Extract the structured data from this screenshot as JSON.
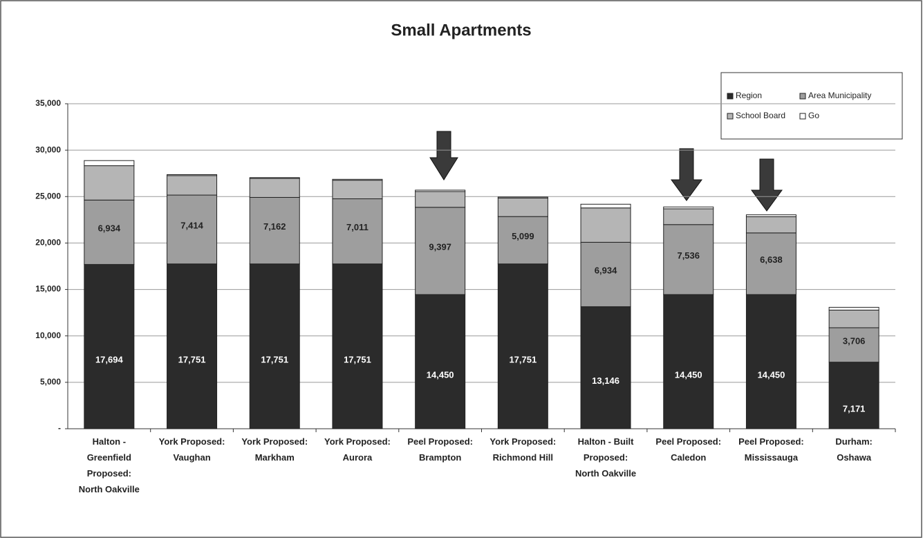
{
  "chart_data": {
    "type": "stacked_bar",
    "title": "Small Apartments",
    "categories": [
      "Halton -\nGreenfield\nProposed:\nNorth Oakville",
      "York Proposed:\nVaughan",
      "York Proposed:\nMarkham",
      "York Proposed:\nAurora",
      "Peel Proposed:\nBrampton",
      "York Proposed:\nRichmond Hill",
      "Halton - Built\nProposed:\nNorth Oakville",
      "Peel Proposed:\nCaledon",
      "Peel Proposed:\nMississauga",
      "Durham:\nOshawa"
    ],
    "series": [
      {
        "name": "Region",
        "color": "#2b2b2b",
        "values": [
          17694,
          17751,
          17751,
          17751,
          14450,
          17751,
          13146,
          14450,
          14450,
          7171
        ],
        "value_labels": [
          "17,694",
          "17,751",
          "17,751",
          "17,751",
          "14,450",
          "17,751",
          "13,146",
          "14,450",
          "14,450",
          "7,171"
        ]
      },
      {
        "name": "Area Municipality",
        "color": "#9e9e9e",
        "values": [
          6934,
          7414,
          7162,
          7011,
          9397,
          5099,
          6934,
          7536,
          6638,
          3706
        ],
        "value_labels": [
          "6,934",
          "7,414",
          "7,162",
          "7,011",
          "9,397",
          "5,099",
          "6,934",
          "7,536",
          "6,638",
          "3,706"
        ]
      },
      {
        "name": "School Board",
        "color": "#b5b5b5",
        "values": [
          3700,
          2100,
          2050,
          2000,
          1700,
          2000,
          3700,
          1700,
          1750,
          1900
        ]
      },
      {
        "name": "Go",
        "color": "#ffffff",
        "values": [
          550,
          100,
          80,
          100,
          150,
          100,
          400,
          200,
          200,
          300
        ]
      }
    ],
    "ylim": [
      0,
      35000
    ],
    "yticks": [
      {
        "value": 0,
        "label": "-"
      },
      {
        "value": 5000,
        "label": "5,000"
      },
      {
        "value": 10000,
        "label": "10,000"
      },
      {
        "value": 15000,
        "label": "15,000"
      },
      {
        "value": 20000,
        "label": "20,000"
      },
      {
        "value": 25000,
        "label": "25,000"
      },
      {
        "value": 30000,
        "label": "30,000"
      },
      {
        "value": 35000,
        "label": "35,000"
      }
    ],
    "grid": true,
    "legend": "top-right"
  }
}
